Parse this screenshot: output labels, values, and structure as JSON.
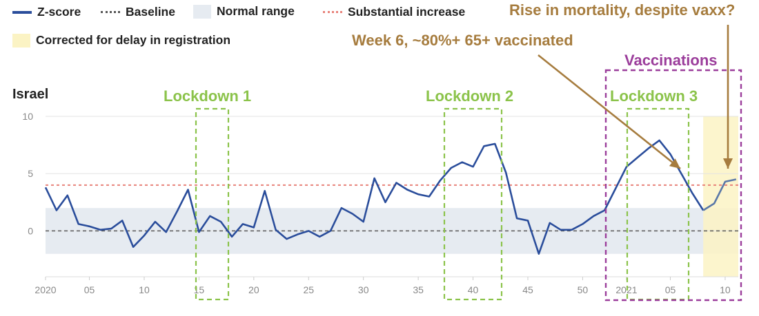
{
  "legend": {
    "zscore_label": "Z-score",
    "baseline_label": "Baseline",
    "normal_label": "Normal range",
    "substantial_label": "Substantial increase",
    "corrected_label": "Corrected for delay in registration"
  },
  "annotations": {
    "rise_mortality": "Rise in mortality, despite vaxx?",
    "week6": "Week 6, ~80%+ 65+ vaccinated",
    "vaccinations": "Vaccinations",
    "lockdown1": "Lockdown 1",
    "lockdown2": "Lockdown 2",
    "lockdown3": "Lockdown 3"
  },
  "country": "Israel",
  "colors": {
    "zscore": "#2a4d9b",
    "corrected_line": "#5a78a8",
    "baseline": "#555555",
    "normal_band": "#e6ebf1",
    "substantial": "#e8827a",
    "corrected_band": "#fbf3c4",
    "lockdown": "#8bc34a",
    "vaccination": "#9b3d9b",
    "annotation": "#a67c3e",
    "axis_text": "#888888"
  },
  "chart_data": {
    "type": "line",
    "x_index": [
      0,
      1,
      2,
      3,
      4,
      5,
      6,
      7,
      8,
      9,
      10,
      11,
      12,
      13,
      14,
      15,
      16,
      17,
      18,
      19,
      20,
      21,
      22,
      23,
      24,
      25,
      26,
      27,
      28,
      29,
      30,
      31,
      32,
      33,
      34,
      35,
      36,
      37,
      38,
      39,
      40,
      41,
      42,
      43,
      44,
      45,
      46,
      47,
      48,
      49,
      50,
      51,
      52,
      53,
      54,
      55,
      56,
      57,
      58,
      59,
      60,
      61,
      62,
      63
    ],
    "series": [
      {
        "values": [
          3.8,
          1.8,
          3.1,
          0.6,
          0.4,
          0.1,
          0.2,
          0.9,
          -1.4,
          -0.4,
          0.8,
          -0.1,
          1.7,
          3.6,
          -0.1,
          1.3,
          0.8,
          -0.5,
          0.6,
          0.3,
          3.5,
          0.1,
          -0.7,
          -0.3,
          0.0,
          -0.5,
          0.0,
          2.0,
          1.5,
          0.8,
          4.6,
          2.5,
          4.2,
          3.6,
          3.2,
          3.0,
          4.4,
          5.5,
          6.0,
          5.6,
          7.4,
          7.6,
          5.1,
          1.1,
          0.9,
          -2.0,
          0.7,
          0.1,
          0.1,
          0.6,
          1.3,
          1.8,
          3.7,
          5.6,
          6.4,
          7.2,
          7.9,
          6.7,
          5.0,
          3.3,
          1.8,
          null,
          null,
          null
        ]
      },
      {
        "values": [
          null,
          null,
          null,
          null,
          null,
          null,
          null,
          null,
          null,
          null,
          null,
          null,
          null,
          null,
          null,
          null,
          null,
          null,
          null,
          null,
          null,
          null,
          null,
          null,
          null,
          null,
          null,
          null,
          null,
          null,
          null,
          null,
          null,
          null,
          null,
          null,
          null,
          null,
          null,
          null,
          null,
          null,
          null,
          null,
          null,
          null,
          null,
          null,
          null,
          null,
          null,
          null,
          null,
          null,
          null,
          null,
          null,
          null,
          null,
          null,
          1.8,
          2.4,
          4.3,
          4.5
        ]
      }
    ],
    "x_ticks": [
      {
        "x": 0,
        "label": "2020"
      },
      {
        "x": 4,
        "label": "05"
      },
      {
        "x": 9,
        "label": "10"
      },
      {
        "x": 14,
        "label": "15"
      },
      {
        "x": 19,
        "label": "20"
      },
      {
        "x": 24,
        "label": "25"
      },
      {
        "x": 29,
        "label": "30"
      },
      {
        "x": 34,
        "label": "35"
      },
      {
        "x": 39,
        "label": "40"
      },
      {
        "x": 44,
        "label": "45"
      },
      {
        "x": 49,
        "label": "50"
      },
      {
        "x": 53,
        "label": "2021"
      },
      {
        "x": 57,
        "label": "05"
      },
      {
        "x": 62,
        "label": "10"
      }
    ],
    "y_ticks": [
      10,
      5,
      0
    ],
    "ylim": [
      -4,
      10
    ],
    "xlim": [
      0,
      63.2
    ],
    "baseline": 0,
    "normal_range": [
      -2,
      2
    ],
    "substantial_threshold": 4,
    "corrected_range": [
      60,
      63.2
    ],
    "grid": true
  }
}
